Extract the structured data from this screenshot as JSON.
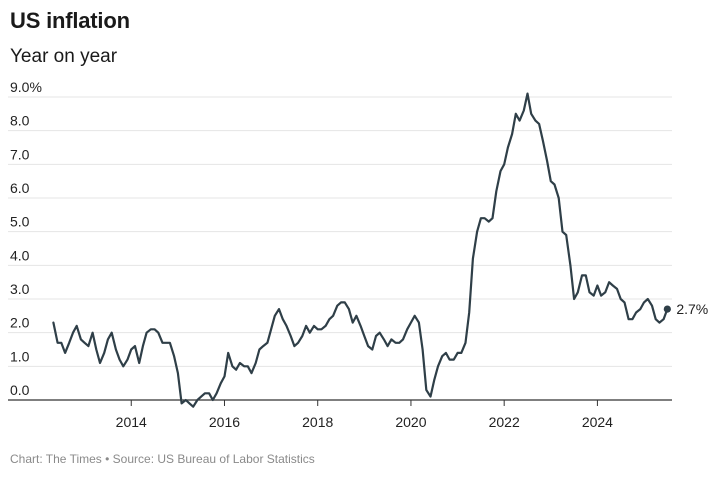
{
  "header": {
    "title": "US inflation",
    "subtitle": "Year on year"
  },
  "footer": {
    "source": "Chart: The Times • Source: US Bureau of Labor Statistics"
  },
  "chart_data": {
    "type": "line",
    "title": "US inflation",
    "subtitle": "Year on year",
    "xlabel": "",
    "ylabel": "",
    "unit": "%",
    "grid": true,
    "xlim": [
      2012.3,
      2025.6
    ],
    "ylim": [
      0,
      9
    ],
    "y_ticks": [
      0,
      1,
      2,
      3,
      4,
      5,
      6,
      7,
      8,
      9
    ],
    "y_tick_labels": [
      "0.0",
      "1.0",
      "2.0",
      "3.0",
      "4.0",
      "5.0",
      "6.0",
      "7.0",
      "8.0",
      "9.0%"
    ],
    "x_ticks": [
      2014,
      2016,
      2018,
      2020,
      2022,
      2024
    ],
    "x_tick_labels": [
      "2014",
      "2016",
      "2018",
      "2020",
      "2022",
      "2024"
    ],
    "end_label": "2.7%",
    "line_color": "#2f3f48",
    "series": [
      {
        "x": [
          2012.33,
          2012.42,
          2012.5,
          2012.58,
          2012.67,
          2012.75,
          2012.83,
          2012.92,
          2013.0,
          2013.08,
          2013.17,
          2013.25,
          2013.33,
          2013.42,
          2013.5,
          2013.58,
          2013.67,
          2013.75,
          2013.83,
          2013.92,
          2014.0,
          2014.08,
          2014.17,
          2014.25,
          2014.33,
          2014.42,
          2014.5,
          2014.58,
          2014.67,
          2014.75,
          2014.83,
          2014.92,
          2015.0,
          2015.08,
          2015.17,
          2015.25,
          2015.33,
          2015.42,
          2015.5,
          2015.58,
          2015.67,
          2015.75,
          2015.83,
          2015.92,
          2016.0,
          2016.08,
          2016.17,
          2016.25,
          2016.33,
          2016.42,
          2016.5,
          2016.58,
          2016.67,
          2016.75,
          2016.83,
          2016.92,
          2017.0,
          2017.08,
          2017.17,
          2017.25,
          2017.33,
          2017.42,
          2017.5,
          2017.58,
          2017.67,
          2017.75,
          2017.83,
          2017.92,
          2018.0,
          2018.08,
          2018.17,
          2018.25,
          2018.33,
          2018.42,
          2018.5,
          2018.58,
          2018.67,
          2018.75,
          2018.83,
          2018.92,
          2019.0,
          2019.08,
          2019.17,
          2019.25,
          2019.33,
          2019.42,
          2019.5,
          2019.58,
          2019.67,
          2019.75,
          2019.83,
          2019.92,
          2020.0,
          2020.08,
          2020.17,
          2020.25,
          2020.33,
          2020.42,
          2020.5,
          2020.58,
          2020.67,
          2020.75,
          2020.83,
          2020.92,
          2021.0,
          2021.08,
          2021.17,
          2021.25,
          2021.33,
          2021.42,
          2021.5,
          2021.58,
          2021.67,
          2021.75,
          2021.83,
          2021.92,
          2022.0,
          2022.08,
          2022.17,
          2022.25,
          2022.33,
          2022.42,
          2022.5,
          2022.58,
          2022.67,
          2022.75,
          2022.83,
          2022.92,
          2023.0,
          2023.08,
          2023.17,
          2023.25,
          2023.33,
          2023.42,
          2023.5,
          2023.58,
          2023.67,
          2023.75,
          2023.83,
          2023.92,
          2024.0,
          2024.08,
          2024.17,
          2024.25,
          2024.33,
          2024.42,
          2024.5,
          2024.58,
          2024.67,
          2024.75,
          2024.83,
          2024.92,
          2025.0,
          2025.08,
          2025.17,
          2025.25,
          2025.33,
          2025.42,
          2025.5
        ],
        "values": [
          2.3,
          1.7,
          1.7,
          1.4,
          1.7,
          2.0,
          2.2,
          1.8,
          1.7,
          1.6,
          2.0,
          1.5,
          1.1,
          1.4,
          1.8,
          2.0,
          1.5,
          1.2,
          1.0,
          1.2,
          1.5,
          1.6,
          1.1,
          1.6,
          2.0,
          2.1,
          2.1,
          2.0,
          1.7,
          1.7,
          1.7,
          1.3,
          0.8,
          -0.1,
          0.0,
          -0.1,
          -0.2,
          0.0,
          0.1,
          0.2,
          0.2,
          0.0,
          0.2,
          0.5,
          0.7,
          1.4,
          1.0,
          0.9,
          1.1,
          1.0,
          1.0,
          0.8,
          1.1,
          1.5,
          1.6,
          1.7,
          2.1,
          2.5,
          2.7,
          2.4,
          2.2,
          1.9,
          1.6,
          1.7,
          1.9,
          2.2,
          2.0,
          2.2,
          2.1,
          2.1,
          2.2,
          2.4,
          2.5,
          2.8,
          2.9,
          2.9,
          2.7,
          2.3,
          2.5,
          2.2,
          1.9,
          1.6,
          1.5,
          1.9,
          2.0,
          1.8,
          1.6,
          1.8,
          1.7,
          1.7,
          1.8,
          2.1,
          2.3,
          2.5,
          2.3,
          1.5,
          0.3,
          0.1,
          0.6,
          1.0,
          1.3,
          1.4,
          1.2,
          1.2,
          1.4,
          1.4,
          1.7,
          2.6,
          4.2,
          5.0,
          5.4,
          5.4,
          5.3,
          5.4,
          6.2,
          6.8,
          7.0,
          7.5,
          7.9,
          8.5,
          8.3,
          8.6,
          9.1,
          8.5,
          8.3,
          8.2,
          7.7,
          7.1,
          6.5,
          6.4,
          6.0,
          5.0,
          4.9,
          4.0,
          3.0,
          3.2,
          3.7,
          3.7,
          3.2,
          3.1,
          3.4,
          3.1,
          3.2,
          3.5,
          3.4,
          3.3,
          3.0,
          2.9,
          2.4,
          2.4,
          2.6,
          2.7,
          2.9,
          3.0,
          2.8,
          2.4,
          2.3,
          2.4,
          2.7
        ]
      }
    ]
  }
}
